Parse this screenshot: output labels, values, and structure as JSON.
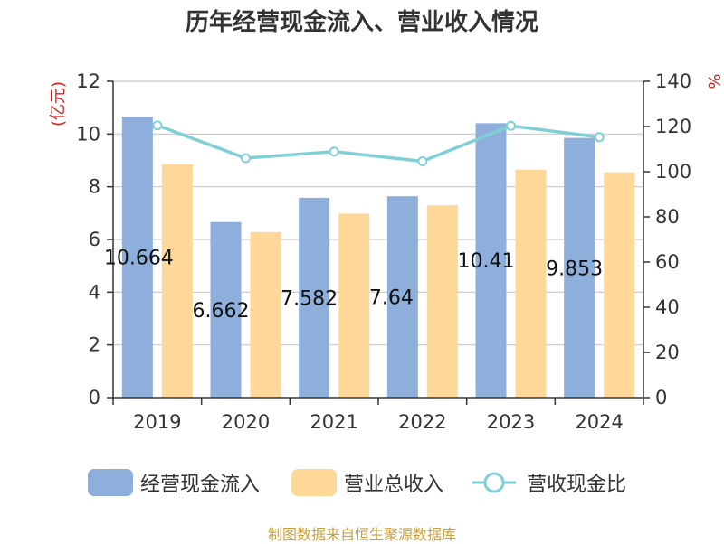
{
  "chart_data": {
    "type": "bar",
    "title": "历年经营现金流入、营业收入情况",
    "categories": [
      "2019",
      "2020",
      "2021",
      "2022",
      "2023",
      "2024"
    ],
    "series": [
      {
        "name": "经营现金流入",
        "type": "bar",
        "axis": "left",
        "color": "#8eaedc",
        "values": [
          10.664,
          6.662,
          7.582,
          7.64,
          10.41,
          9.853
        ]
      },
      {
        "name": "营业总收入",
        "type": "bar",
        "axis": "left",
        "color": "#ffd899",
        "values": [
          8.85,
          6.28,
          6.98,
          7.3,
          8.65,
          8.55
        ]
      },
      {
        "name": "营收现金比",
        "type": "line",
        "axis": "right",
        "color": "#7fd0d6",
        "values": [
          120.5,
          106.0,
          108.9,
          104.6,
          120.3,
          115.3
        ]
      }
    ],
    "data_labels": [
      "10.664",
      "6.662",
      "7.582",
      "7.64",
      "10.41",
      "9.853"
    ],
    "y_left": {
      "label": "(亿元)",
      "ylim": [
        0,
        12
      ],
      "ticks": [
        0,
        2,
        4,
        6,
        8,
        10,
        12
      ]
    },
    "y_right": {
      "label": "%",
      "ylim": [
        0,
        140
      ],
      "ticks": [
        0,
        20,
        40,
        60,
        80,
        100,
        120,
        140
      ]
    },
    "grid": true,
    "legend_position": "bottom"
  },
  "legend": {
    "items": [
      "经营现金流入",
      "营业总收入",
      "营收现金比"
    ]
  },
  "source": "制图数据来自恒生聚源数据库"
}
